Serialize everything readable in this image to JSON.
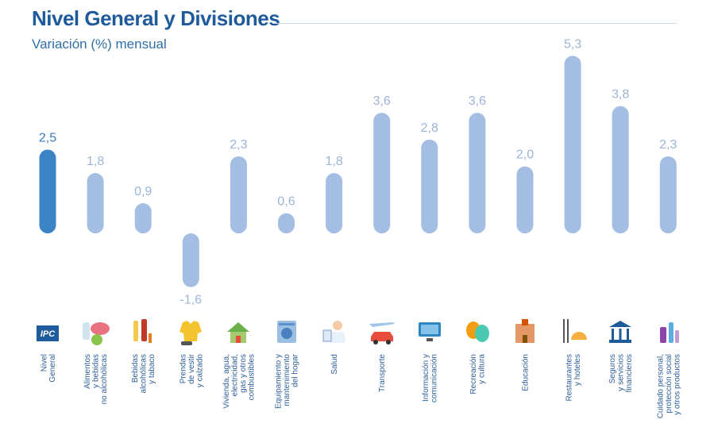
{
  "header": {
    "title": "Nivel General y Divisiones",
    "subtitle": "Variación (%) mensual"
  },
  "colors": {
    "title": "#1f5b9b",
    "primary_bar": "#3a84c6",
    "secondary_bar": "#a3bde3",
    "primary_label": "#3a7cc0",
    "secondary_label": "#9cb4d8",
    "category_text": "#2e5f9a"
  },
  "chart_data": {
    "type": "bar",
    "title": "Nivel General y Divisiones",
    "subtitle": "Variación (%) mensual",
    "xlabel": "",
    "ylabel": "",
    "ylim": [
      -1.6,
      5.3
    ],
    "grid": false,
    "categories": [
      [
        "Nivel",
        "General"
      ],
      [
        "Alimentos",
        "y bebidas",
        "no alcohólicas"
      ],
      [
        "Bebidas",
        "alcohólicas",
        "y tabaco"
      ],
      [
        "Prendas",
        "de vestir",
        "y calzado"
      ],
      [
        "Vivienda, agua,",
        "electricidad,",
        "gas y otros",
        "combustibles"
      ],
      [
        "Equipamiento y",
        "mantenimiento",
        "del hogar"
      ],
      [
        "Salud"
      ],
      [
        "Transporte"
      ],
      [
        "Información y",
        "comunicación"
      ],
      [
        "Recreación",
        "y cultura"
      ],
      [
        "Educación"
      ],
      [
        "Restaurantes",
        "y hoteles"
      ],
      [
        "Seguros",
        "y servicios",
        "financieros"
      ],
      [
        "Cuidado personal,",
        "protección social",
        "y otros productos"
      ]
    ],
    "values": [
      2.5,
      1.8,
      0.9,
      -1.6,
      2.3,
      0.6,
      1.8,
      3.6,
      2.8,
      3.6,
      2.0,
      5.3,
      3.8,
      2.3
    ],
    "value_labels": [
      "2,5",
      "1,8",
      "0,9",
      "-1,6",
      "2,3",
      "0,6",
      "1,8",
      "3,6",
      "2,8",
      "3,6",
      "2,0",
      "5,3",
      "3,8",
      "2,3"
    ],
    "highlight_index": 0
  },
  "icons": [
    "ipc-logo-icon",
    "food-icon",
    "beverages-icon",
    "clothing-icon",
    "house-icon",
    "washing-machine-icon",
    "doctor-icon",
    "car-plane-icon",
    "computer-icon",
    "theater-masks-icon",
    "school-icon",
    "cutlery-icon",
    "bank-icon",
    "personal-care-icon"
  ],
  "ipc_logo_text": "IPC"
}
